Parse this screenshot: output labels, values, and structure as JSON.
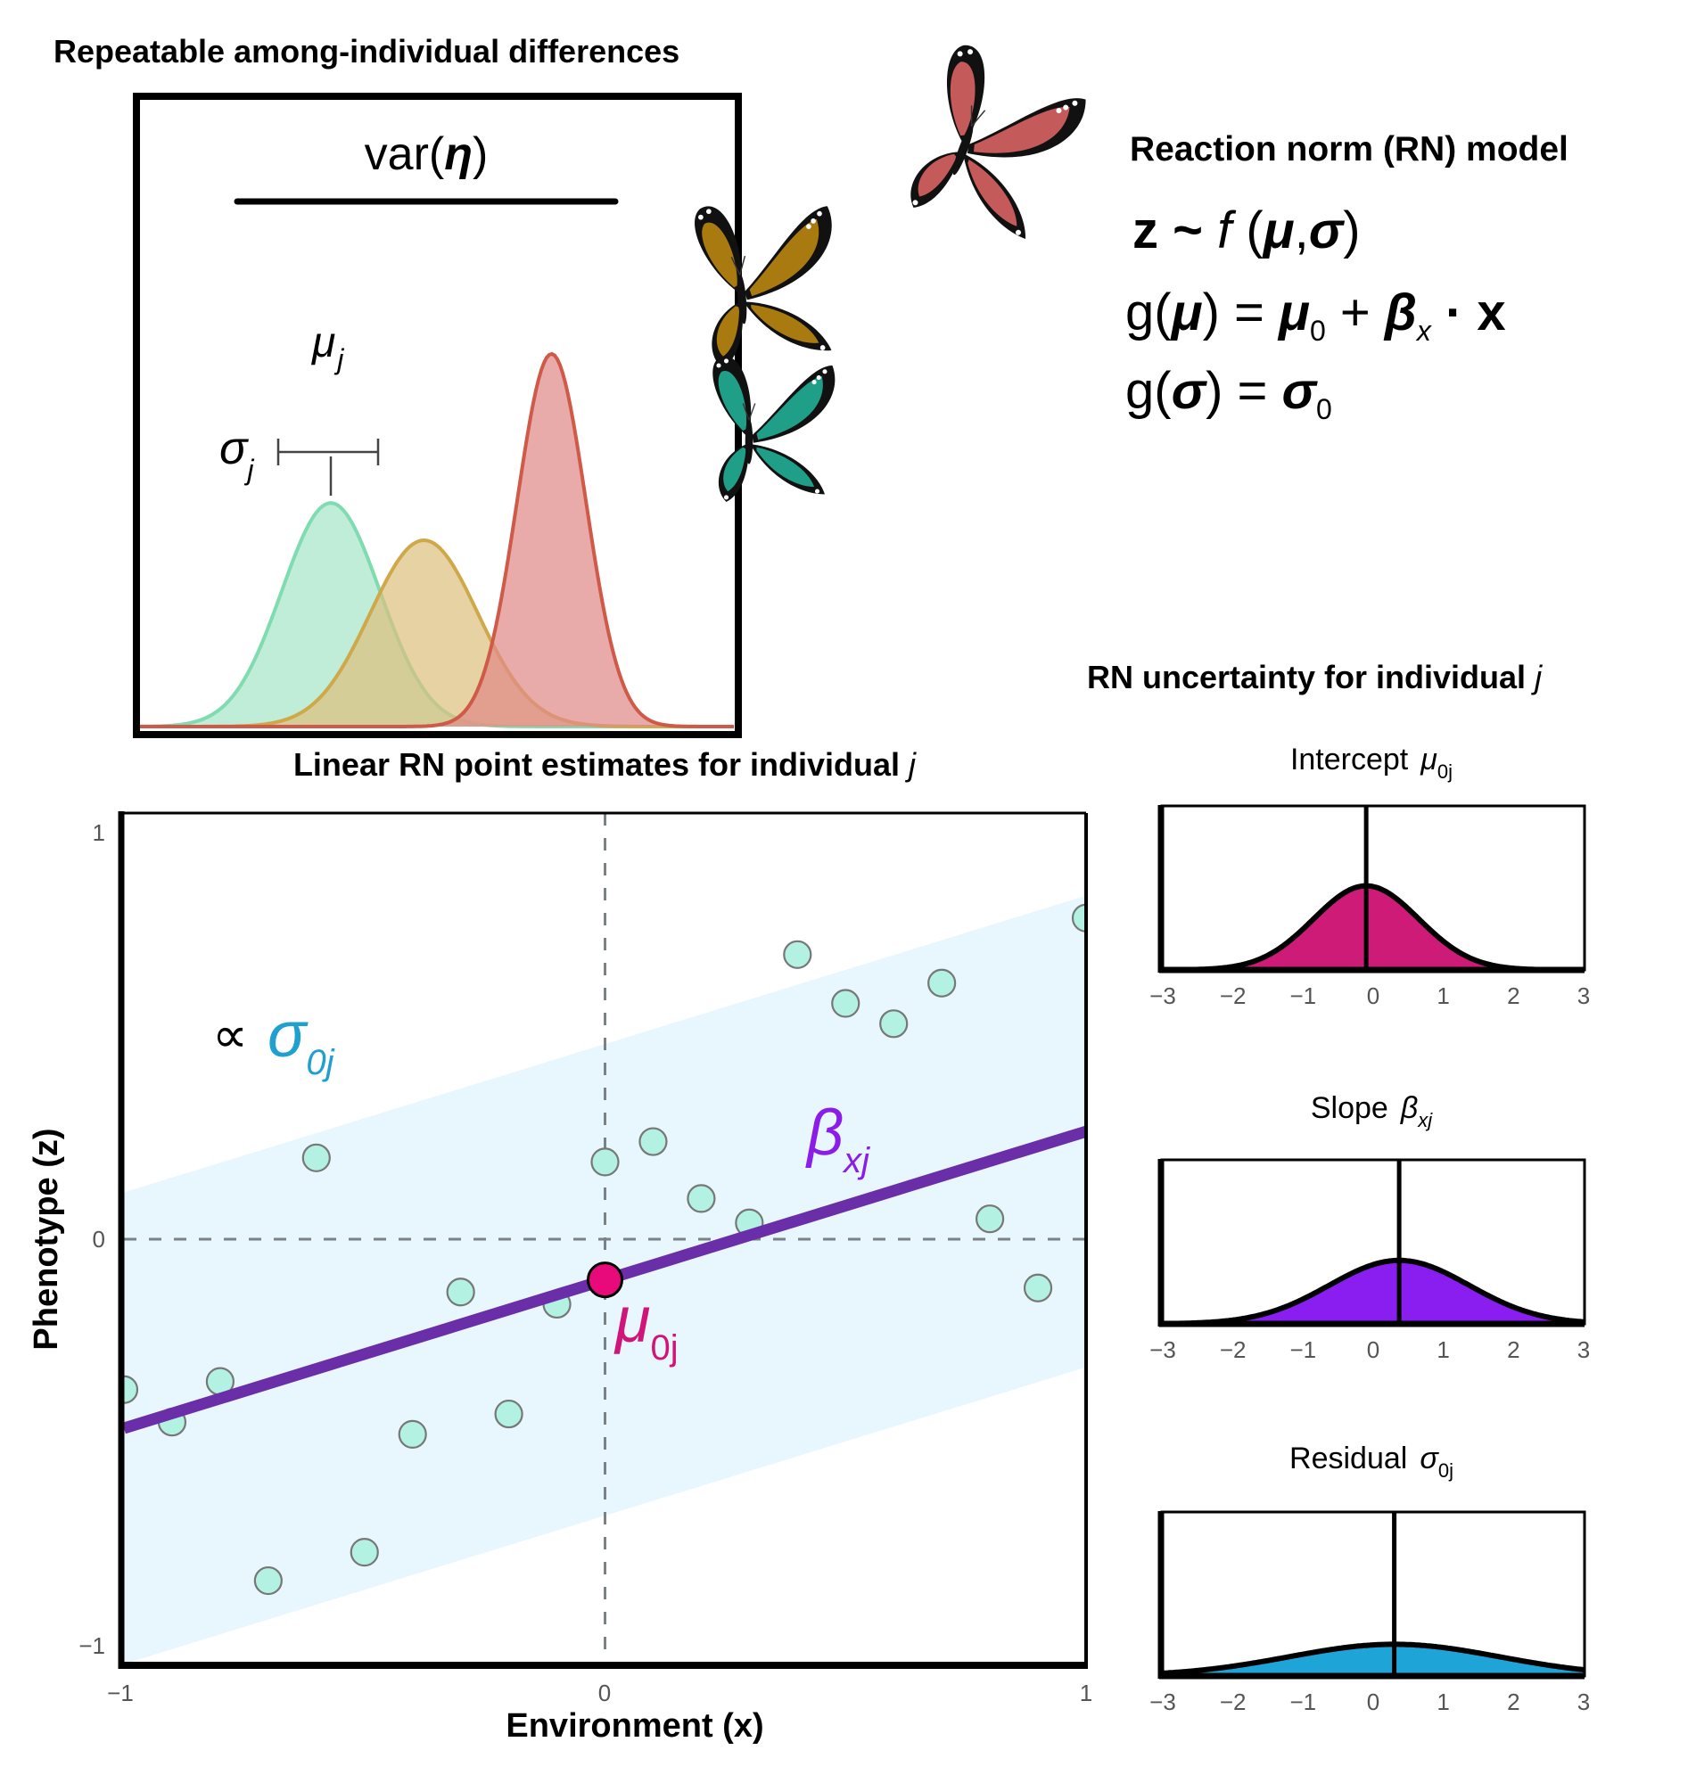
{
  "top_panel": {
    "title": "Repeatable among-individual differences",
    "var_label": {
      "prefix": "var(",
      "symbol": "η",
      "suffix": ")"
    },
    "mu_label": {
      "symbol": "μ",
      "sub": "j"
    },
    "sigma_label": {
      "symbol": "σ",
      "sub": "j"
    },
    "distributions": [
      {
        "name": "green",
        "mean": 0.0,
        "sd": 1.0,
        "peak": 0.6,
        "fill": "#a8e6c8",
        "stroke": "#7fdcb0"
      },
      {
        "name": "gold",
        "mean": 1.9,
        "sd": 1.1,
        "peak": 0.5,
        "fill": "#dcc080",
        "stroke": "#cfa84a"
      },
      {
        "name": "red",
        "mean": 4.5,
        "sd": 0.7,
        "peak": 1.0,
        "fill": "#e08a88",
        "stroke": "#d05a48"
      }
    ],
    "butterflies": [
      {
        "name": "red-butterfly",
        "color": "#c45a5a"
      },
      {
        "name": "gold-butterfly",
        "color": "#a87a10"
      },
      {
        "name": "teal-butterfly",
        "color": "#1f9e88"
      }
    ]
  },
  "model": {
    "title": "Reaction norm (RN) model",
    "eq1": {
      "z": "z",
      "tilde": " ~ ",
      "f": "f",
      "args_open": " (",
      "mu": "μ",
      "comma": ",",
      "sigma": "σ",
      "close": ")"
    },
    "eq2": {
      "g": "g(",
      "mu": "μ",
      "mid": ") = ",
      "mu0": "μ",
      "sub0": "0",
      "plus": " + ",
      "beta": "β",
      "subx": "x",
      "dot": " · ",
      "x": "x"
    },
    "eq3": {
      "g": "g(",
      "sigma": "σ",
      "mid": ") = ",
      "sigma0": "σ",
      "sub0": "0"
    }
  },
  "chart_data": [
    {
      "type": "scatter",
      "title": "Linear RN point estimates for individual j",
      "title_text": "Linear RN point estimates for individual ",
      "title_italic": "j",
      "xlabel": "Environment (x)",
      "ylabel": "Phenotype (z)",
      "xlim": [
        -1,
        1
      ],
      "ylim": [
        -1,
        1
      ],
      "xticks": [
        "−1",
        "0",
        "1"
      ],
      "yticks": [
        "1",
        "0",
        "−1"
      ],
      "xtick_values": [
        -1,
        0,
        1
      ],
      "ytick_values": [
        1,
        0,
        -1
      ],
      "points": {
        "x": [
          -1.0,
          -0.9,
          -0.8,
          -0.7,
          -0.6,
          -0.5,
          -0.4,
          -0.3,
          -0.2,
          -0.1,
          0.0,
          0.1,
          0.2,
          0.3,
          0.4,
          0.5,
          0.6,
          0.7,
          0.8,
          0.9,
          1.0
        ],
        "y": [
          -0.37,
          -0.45,
          -0.35,
          -0.84,
          0.2,
          -0.77,
          -0.48,
          -0.13,
          -0.43,
          -0.16,
          0.19,
          0.24,
          0.1,
          0.04,
          0.7,
          0.58,
          0.53,
          0.63,
          0.05,
          -0.12,
          0.79
        ]
      },
      "regression": {
        "intercept": -0.1,
        "slope": 0.365
      },
      "band_halfwidth": 0.58,
      "intercept_point": {
        "x": 0,
        "y": -0.1
      },
      "labels": {
        "proportional": "∝",
        "sigma": "σ",
        "sigma_sub": "0j",
        "beta": "β",
        "beta_sub": "xj",
        "mu": "μ",
        "mu_sub": "0j"
      },
      "colors": {
        "band": "#e8f7fd",
        "line": "#6a2fa8",
        "point_fill": "#b3f2e2",
        "point_stroke": "#777777",
        "intercept_dot": "#e8097a",
        "sigma": "#1fa0d0",
        "beta": "#8a1ee8",
        "mu": "#d0157a"
      }
    },
    {
      "type": "area",
      "section_title": "RN uncertainty for individual ",
      "section_title_italic": "j",
      "panels": [
        {
          "label": "Intercept",
          "symbol": "μ",
          "sub": "0j",
          "mean": -0.1,
          "sd": 0.75,
          "peak": 0.53,
          "fill": "#cf1b78"
        },
        {
          "label": "Slope",
          "symbol": "β",
          "sub": "xj",
          "mean": 0.37,
          "sd": 1.0,
          "peak": 0.4,
          "fill": "#8a1ef0"
        },
        {
          "label": "Residual",
          "symbol": "σ",
          "sub": "0j",
          "mean": 0.3,
          "sd": 1.5,
          "peak": 0.2,
          "fill": "#1ea4d6"
        }
      ],
      "xlim": [
        -3,
        3
      ],
      "xticks": [
        "−3",
        "−2",
        "−1",
        "0",
        "1",
        "2",
        "3"
      ],
      "xtick_values": [
        -3,
        -2,
        -1,
        0,
        1,
        2,
        3
      ]
    }
  ]
}
